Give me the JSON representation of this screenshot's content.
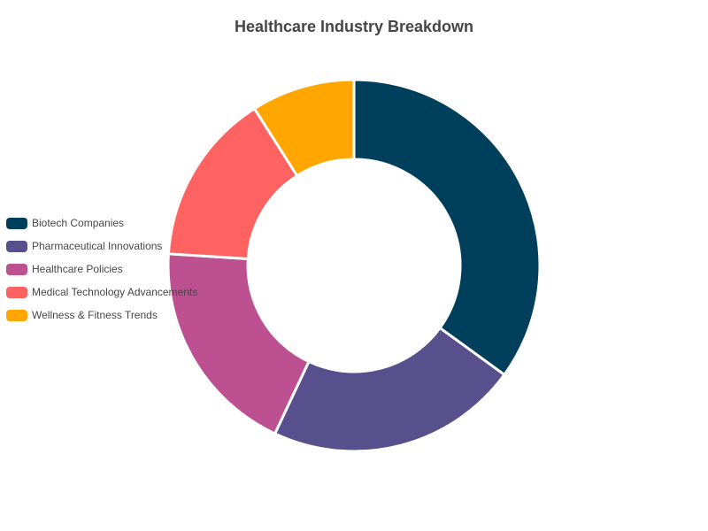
{
  "chart_data": {
    "type": "pie",
    "variant": "donut",
    "title": "Healthcare Industry Breakdown",
    "categories": [
      "Biotech Companies",
      "Pharmaceutical Innovations",
      "Healthcare Policies",
      "Medical Technology Advancements",
      "Wellness & Fitness Trends"
    ],
    "values": [
      35,
      22,
      19,
      15,
      9
    ],
    "colors": [
      "#003f5c",
      "#58508d",
      "#bc5090",
      "#ff6361",
      "#ffa600"
    ],
    "legend_position": "left",
    "value_labels_shown": false
  }
}
